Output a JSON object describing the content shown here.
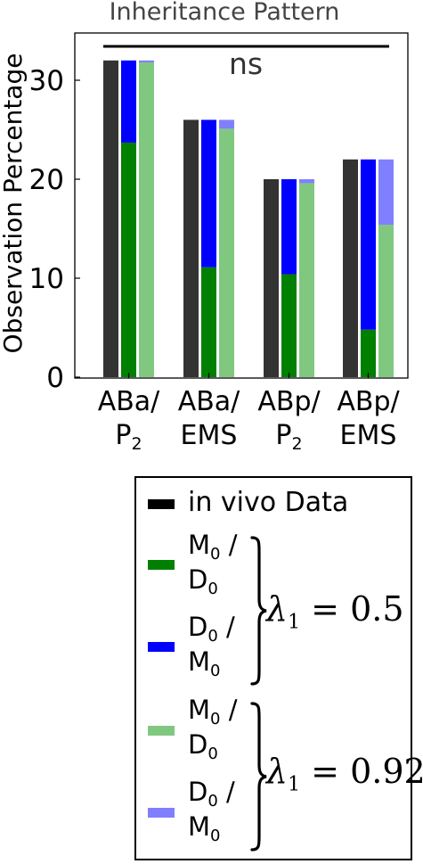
{
  "chart_data": {
    "type": "bar",
    "title": "Inheritance Pattern",
    "ylabel": "Observation Percentage",
    "xlabel": "",
    "ylim": [
      0,
      35
    ],
    "yticks": [
      0,
      10,
      20,
      30
    ],
    "categories": [
      {
        "top": "ABa/",
        "bottom": "P",
        "sub": "2"
      },
      {
        "top": "ABa/",
        "bottom": "EMS",
        "sub": ""
      },
      {
        "top": "ABp/",
        "bottom": "P",
        "sub": "2"
      },
      {
        "top": "ABp/",
        "bottom": "EMS",
        "sub": ""
      }
    ],
    "significance": "ns",
    "series": [
      {
        "name": "in vivo Data",
        "color": "#333333",
        "values": [
          32,
          26,
          20,
          22
        ]
      },
      {
        "name": "M0/D0 (λ1 = 0.5)",
        "color": "#008000",
        "values": [
          23.7,
          11.1,
          10.4,
          4.8
        ]
      },
      {
        "name": "D0/M0 (λ1 = 0.5)",
        "color": "#0000ff",
        "values": [
          8.3,
          14.9,
          9.6,
          17.2
        ]
      },
      {
        "name": "M0/D0 (λ1 = 0.92)",
        "color": "#80c880",
        "values": [
          31.8,
          25.1,
          19.6,
          15.4
        ]
      },
      {
        "name": "D0/M0 (λ1 = 0.92)",
        "color": "#8080ff",
        "values": [
          0.2,
          0.9,
          0.4,
          6.6
        ]
      }
    ]
  },
  "legend": {
    "invivo": "in vivo Data",
    "m0d0_a": {
      "l1": "M",
      "l1sub": "0",
      "l1tail": " /",
      "l2": "D",
      "l2sub": "0"
    },
    "d0m0_a": {
      "l1": "D",
      "l1sub": "0",
      "l1tail": " /",
      "l2": "M",
      "l2sub": "0"
    },
    "m0d0_b": {
      "l1": "M",
      "l1sub": "0",
      "l1tail": " /",
      "l2": "D",
      "l2sub": "0"
    },
    "d0m0_b": {
      "l1": "D",
      "l1sub": "0",
      "l1tail": " /",
      "l2": "M",
      "l2sub": "0"
    },
    "lambda_a": "λ1 = 0.5",
    "lambda_b": "λ1 = 0.92",
    "lambda_a_value": "0.5",
    "lambda_b_value": "0.92"
  }
}
